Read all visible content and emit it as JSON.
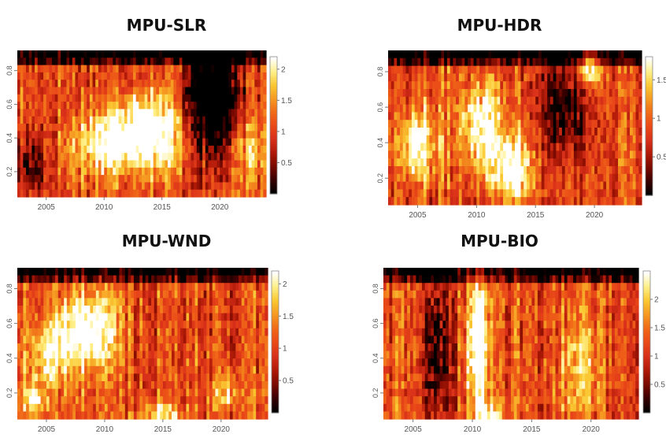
{
  "palette": [
    "#000000",
    "#3a0000",
    "#7a0a00",
    "#b01a08",
    "#d8301a",
    "#ea4a18",
    "#f06a18",
    "#f59a22",
    "#fac832",
    "#fff08a",
    "#ffffff"
  ],
  "chart_data": [
    {
      "type": "heatmap",
      "title": "MPU-SLR",
      "x_ticks": [
        2005,
        2010,
        2015,
        2020
      ],
      "x_range": [
        2002.5,
        2024
      ],
      "y_ticks": [
        0.2,
        0.4,
        0.6,
        0.8
      ],
      "y_range": [
        0.05,
        0.92
      ],
      "colorbar": {
        "range": [
          0,
          2.2
        ],
        "ticks": [
          0.5,
          1,
          1.5,
          2
        ]
      },
      "hotspots": [
        {
          "x": 2013.5,
          "y": 0.42,
          "amp": 0.9,
          "sx": 2.2,
          "sy": 0.15
        },
        {
          "x": 2009.5,
          "y": 0.35,
          "amp": 0.45,
          "sx": 1.8,
          "sy": 0.12
        },
        {
          "x": 2022.5,
          "y": 0.35,
          "amp": 0.35,
          "sx": 1.0,
          "sy": 0.12
        },
        {
          "x": 2019.5,
          "y": 0.65,
          "amp": -0.95,
          "sx": 1.6,
          "sy": 0.25
        },
        {
          "x": 2003.5,
          "y": 0.25,
          "amp": -0.4,
          "sx": 1.0,
          "sy": 0.12
        }
      ]
    },
    {
      "type": "heatmap",
      "title": "MPU-HDR",
      "x_ticks": [
        2005,
        2010,
        2015,
        2020
      ],
      "x_range": [
        2002.5,
        2024
      ],
      "y_ticks": [
        0.2,
        0.4,
        0.6,
        0.8
      ],
      "y_range": [
        0.05,
        0.92
      ],
      "colorbar": {
        "range": [
          0,
          1.8
        ],
        "ticks": [
          0.5,
          1,
          1.5
        ]
      },
      "hotspots": [
        {
          "x": 2005,
          "y": 0.4,
          "amp": 0.6,
          "sx": 1.2,
          "sy": 0.13
        },
        {
          "x": 2010.5,
          "y": 0.5,
          "amp": 0.7,
          "sx": 1.3,
          "sy": 0.16
        },
        {
          "x": 2013,
          "y": 0.25,
          "amp": 0.7,
          "sx": 1.2,
          "sy": 0.12
        },
        {
          "x": 2019.5,
          "y": 0.82,
          "amp": 0.65,
          "sx": 0.8,
          "sy": 0.08
        },
        {
          "x": 2017.5,
          "y": 0.6,
          "amp": -0.5,
          "sx": 1.5,
          "sy": 0.2
        }
      ]
    },
    {
      "type": "heatmap",
      "title": "MPU-WND",
      "x_ticks": [
        2005,
        2010,
        2015,
        2020
      ],
      "x_range": [
        2002.5,
        2024
      ],
      "y_ticks": [
        0.2,
        0.4,
        0.6,
        0.8
      ],
      "y_range": [
        0.05,
        0.92
      ],
      "colorbar": {
        "range": [
          0,
          2.2
        ],
        "ticks": [
          0.5,
          1,
          1.5,
          2
        ]
      },
      "hotspots": [
        {
          "x": 2008.5,
          "y": 0.55,
          "amp": 0.75,
          "sx": 1.8,
          "sy": 0.16
        },
        {
          "x": 2005,
          "y": 0.4,
          "amp": 0.45,
          "sx": 1.2,
          "sy": 0.14
        },
        {
          "x": 2004,
          "y": 0.15,
          "amp": 0.6,
          "sx": 0.6,
          "sy": 0.05
        },
        {
          "x": 2020.5,
          "y": 0.2,
          "amp": 0.35,
          "sx": 0.9,
          "sy": 0.08
        },
        {
          "x": 2015,
          "y": 0.08,
          "amp": 0.45,
          "sx": 1.3,
          "sy": 0.04
        }
      ]
    },
    {
      "type": "heatmap",
      "title": "MPU-BIO",
      "x_ticks": [
        2005,
        2010,
        2015,
        2020
      ],
      "x_range": [
        2002.5,
        2024
      ],
      "y_ticks": [
        0.2,
        0.4,
        0.6,
        0.8
      ],
      "y_range": [
        0.05,
        0.92
      ],
      "colorbar": {
        "range": [
          0,
          2.5
        ],
        "ticks": [
          0.5,
          1,
          1.5,
          2
        ]
      },
      "hotspots": [
        {
          "x": 2010.5,
          "y": 0.5,
          "amp": 0.9,
          "sx": 0.6,
          "sy": 0.3
        },
        {
          "x": 2007,
          "y": 0.45,
          "amp": -0.6,
          "sx": 0.7,
          "sy": 0.3
        },
        {
          "x": 2011.5,
          "y": 0.08,
          "amp": 0.5,
          "sx": 0.8,
          "sy": 0.04
        },
        {
          "x": 2019,
          "y": 0.35,
          "amp": 0.3,
          "sx": 1.3,
          "sy": 0.2
        }
      ]
    }
  ]
}
